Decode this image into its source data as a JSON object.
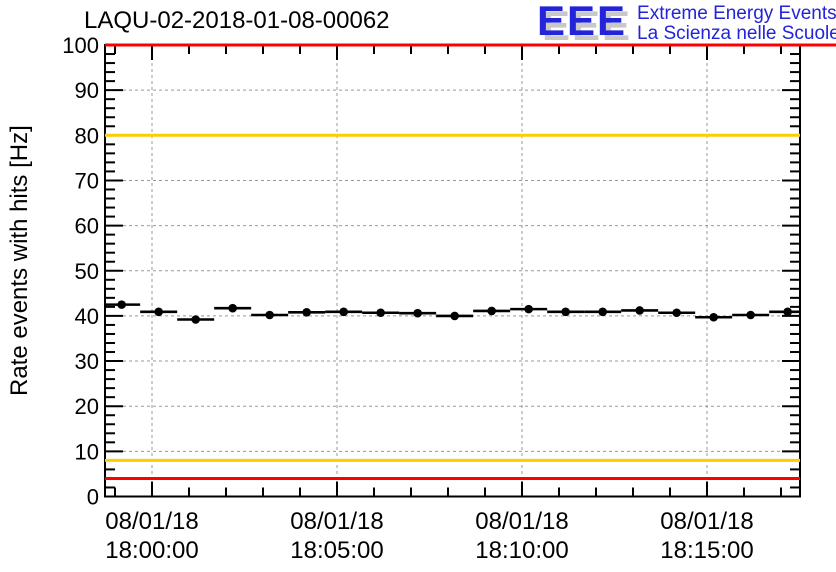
{
  "header": {
    "title": "LAQU-02-2018-01-08-00062",
    "logo": {
      "acronym": "EEE",
      "line1": "Extreme Energy Events",
      "line2": "La Scienza nelle Scuole",
      "color": "#2323d9",
      "shadow_color": "#c8c8c8"
    }
  },
  "chart_data": {
    "type": "scatter",
    "title": "LAQU-02-2018-01-08-00062",
    "xlabel": "",
    "ylabel": "Rate events with hits [Hz]",
    "ylim": [
      0,
      100
    ],
    "y_major_step": 10,
    "y_minor_step": 2,
    "y_tick_labels": [
      0,
      10,
      20,
      30,
      40,
      50,
      60,
      70,
      80,
      90,
      100
    ],
    "grid": "dashed",
    "grid_color": "#999999",
    "x_axis": {
      "date": "08/01/18",
      "xlim_minutes_from_1800": [
        -1.27,
        17.51
      ],
      "minor_step_minutes": 1,
      "major_step_minutes": 5,
      "tick_labels": [
        {
          "min": 0,
          "date": "08/01/18",
          "time": "18:00:00"
        },
        {
          "min": 5,
          "date": "08/01/18",
          "time": "18:05:00"
        },
        {
          "min": 10,
          "date": "08/01/18",
          "time": "18:10:00"
        },
        {
          "min": 15,
          "date": "08/01/18",
          "time": "18:15:00"
        }
      ]
    },
    "threshold_lines": [
      {
        "value_hz": 100,
        "color": "#ff0000",
        "extends_past_frame": true
      },
      {
        "value_hz": 80,
        "color": "#ffcc00",
        "extends_past_frame": false
      },
      {
        "value_hz": 8,
        "color": "#ffcc00",
        "extends_past_frame": false
      },
      {
        "value_hz": 4,
        "color": "#ff0000",
        "extends_past_frame": false
      }
    ],
    "series": [
      {
        "name": "rate-events-with-hits",
        "marker": "filled-circle",
        "color": "#000000",
        "bin_halfwidth_min": 0.5,
        "points": [
          {
            "t_min": -0.82,
            "time": "17:59:11",
            "rate_hz": 42.5
          },
          {
            "t_min": 0.18,
            "time": "18:00:11",
            "rate_hz": 40.9
          },
          {
            "t_min": 1.18,
            "time": "18:01:11",
            "rate_hz": 39.2
          },
          {
            "t_min": 2.18,
            "time": "18:02:11",
            "rate_hz": 41.7
          },
          {
            "t_min": 3.18,
            "time": "18:03:11",
            "rate_hz": 40.2
          },
          {
            "t_min": 4.18,
            "time": "18:04:11",
            "rate_hz": 40.8
          },
          {
            "t_min": 5.18,
            "time": "18:05:11",
            "rate_hz": 40.9
          },
          {
            "t_min": 6.18,
            "time": "18:06:11",
            "rate_hz": 40.7
          },
          {
            "t_min": 7.18,
            "time": "18:07:11",
            "rate_hz": 40.6
          },
          {
            "t_min": 8.18,
            "time": "18:08:11",
            "rate_hz": 40.0
          },
          {
            "t_min": 9.18,
            "time": "18:09:11",
            "rate_hz": 41.1
          },
          {
            "t_min": 10.18,
            "time": "18:10:11",
            "rate_hz": 41.5
          },
          {
            "t_min": 11.18,
            "time": "18:11:11",
            "rate_hz": 40.9
          },
          {
            "t_min": 12.18,
            "time": "18:12:11",
            "rate_hz": 40.9
          },
          {
            "t_min": 13.18,
            "time": "18:13:11",
            "rate_hz": 41.2
          },
          {
            "t_min": 14.18,
            "time": "18:14:11",
            "rate_hz": 40.7
          },
          {
            "t_min": 15.18,
            "time": "18:15:11",
            "rate_hz": 39.7
          },
          {
            "t_min": 16.18,
            "time": "18:16:11",
            "rate_hz": 40.2
          },
          {
            "t_min": 17.18,
            "time": "18:17:11",
            "rate_hz": 40.9
          }
        ]
      }
    ]
  }
}
